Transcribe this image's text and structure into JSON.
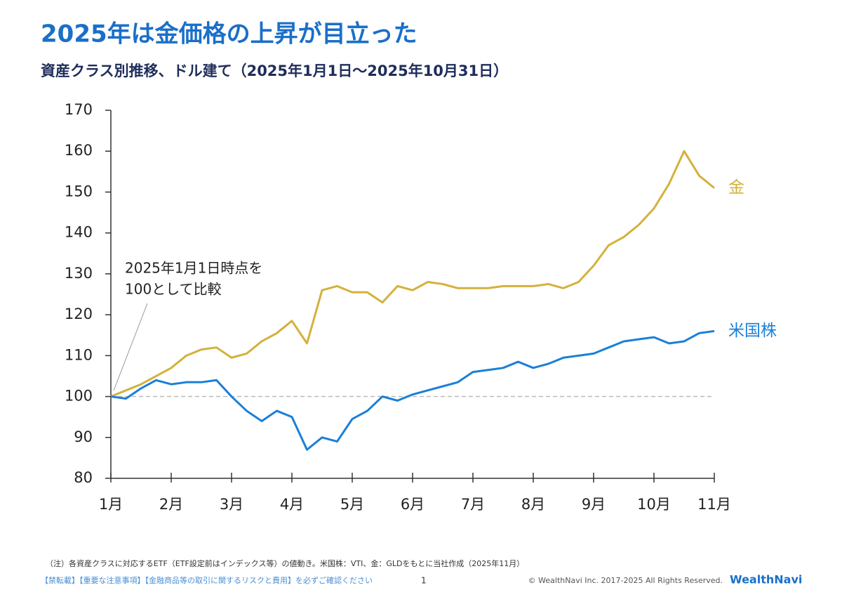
{
  "chart_data": {
    "type": "line",
    "title": "2025年は金価格の上昇が目立った",
    "subtitle": "資産クラス別推移、ドル建て（2025年1月1日～2025年10月31日）",
    "annotation": [
      "2025年1月1日時点を",
      "100として比較"
    ],
    "categories": [
      "1月",
      null,
      null,
      null,
      "2月",
      null,
      null,
      null,
      "3月",
      null,
      null,
      null,
      "4月",
      null,
      null,
      null,
      "5月",
      null,
      null,
      null,
      "6月",
      null,
      null,
      null,
      "7月",
      null,
      null,
      null,
      "8月",
      null,
      null,
      null,
      "9月",
      null,
      null,
      null,
      "10月",
      null,
      null,
      null,
      "11月"
    ],
    "series": [
      {
        "name": "金",
        "color": "#d4b13c",
        "values": [
          100,
          101.5,
          103,
          105,
          107,
          110,
          111.5,
          112,
          109.5,
          110.5,
          113.5,
          115.5,
          118.5,
          113,
          126,
          127,
          125.5,
          125.5,
          123,
          127,
          126,
          128,
          127.5,
          126.5,
          126.5,
          126.5,
          127,
          127,
          127,
          127.5,
          126.5,
          128,
          132,
          137,
          139,
          142,
          146,
          152,
          160,
          154,
          151
        ]
      },
      {
        "name": "米国株",
        "color": "#1a7fd8",
        "values": [
          100,
          99.5,
          102,
          104,
          103,
          103.5,
          103.5,
          104,
          100,
          96.5,
          94,
          96.5,
          95,
          87,
          90,
          89,
          94.5,
          96.5,
          100,
          99,
          100.5,
          101.5,
          102.5,
          103.5,
          106,
          106.5,
          107,
          108.5,
          107,
          108,
          109.5,
          110,
          110.5,
          112,
          113.5,
          114,
          114.5,
          113,
          113.5,
          115.5,
          116
        ]
      }
    ],
    "reference_line": 100,
    "ylim": [
      80,
      170
    ],
    "yticks": [
      80,
      90,
      100,
      110,
      120,
      130,
      140,
      150,
      160,
      170
    ]
  },
  "footer": {
    "note": "（注）各資産クラスに対応するETF（ETF設定前はインデックス等）の値動き。米国株：VTI、金：GLDをもとに当社作成（2025年11月）",
    "disclaimer": "【禁転載】【重要な注意事項】【金融商品等の取引に関するリスクと費用】を必ずご確認ください",
    "page": "1",
    "copyright": "© WealthNavi Inc. 2017-2025 All Rights Reserved.",
    "logo": "WealthNavi"
  }
}
